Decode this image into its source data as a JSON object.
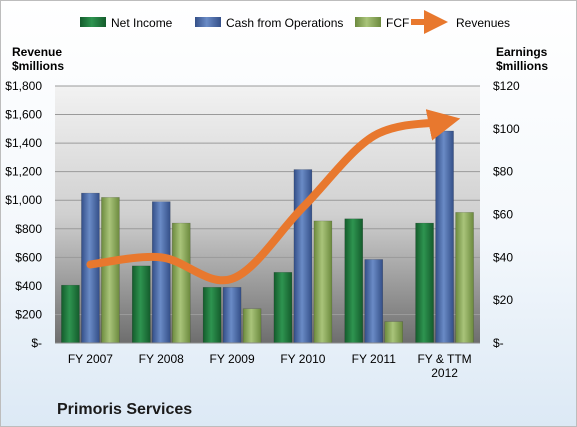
{
  "chart_data": {
    "type": "bar",
    "title": "Primoris Services",
    "categories": [
      "FY 2007",
      "FY 2008",
      "FY 2009",
      "FY 2010",
      "FY 2011",
      "FY & TTM 2012"
    ],
    "left_axis": {
      "label_line1": "Revenue",
      "label_line2": "$millions",
      "ylim": [
        0,
        1800
      ],
      "ticks": [
        "$-",
        "$200",
        "$400",
        "$600",
        "$800",
        "$1,000",
        "$1,200",
        "$1,400",
        "$1,600",
        "$1,800"
      ]
    },
    "right_axis": {
      "label_line1": "Earnings",
      "label_line2": "$millions",
      "ylim": [
        0,
        120
      ],
      "ticks": [
        "$-",
        "$20",
        "$40",
        "$60",
        "$80",
        "$100",
        "$120"
      ]
    },
    "series": [
      {
        "name": "Net Income",
        "type": "bar",
        "axis": "right",
        "color": "#1f7a3e",
        "values": [
          27,
          36,
          26,
          33,
          58,
          56
        ]
      },
      {
        "name": "Cash from Operations",
        "type": "bar",
        "axis": "right",
        "color": "#4a6aa8",
        "values": [
          70,
          66,
          26,
          81,
          39,
          99
        ]
      },
      {
        "name": "FCF",
        "type": "bar",
        "axis": "right",
        "color": "#8aa85a",
        "values": [
          68,
          56,
          16,
          57,
          10,
          61
        ]
      },
      {
        "name": "Revenues",
        "type": "line",
        "axis": "left",
        "color": "#e8782e",
        "values": [
          550,
          600,
          450,
          950,
          1450,
          1550
        ]
      }
    ],
    "grid": true,
    "legend_position": "top"
  }
}
